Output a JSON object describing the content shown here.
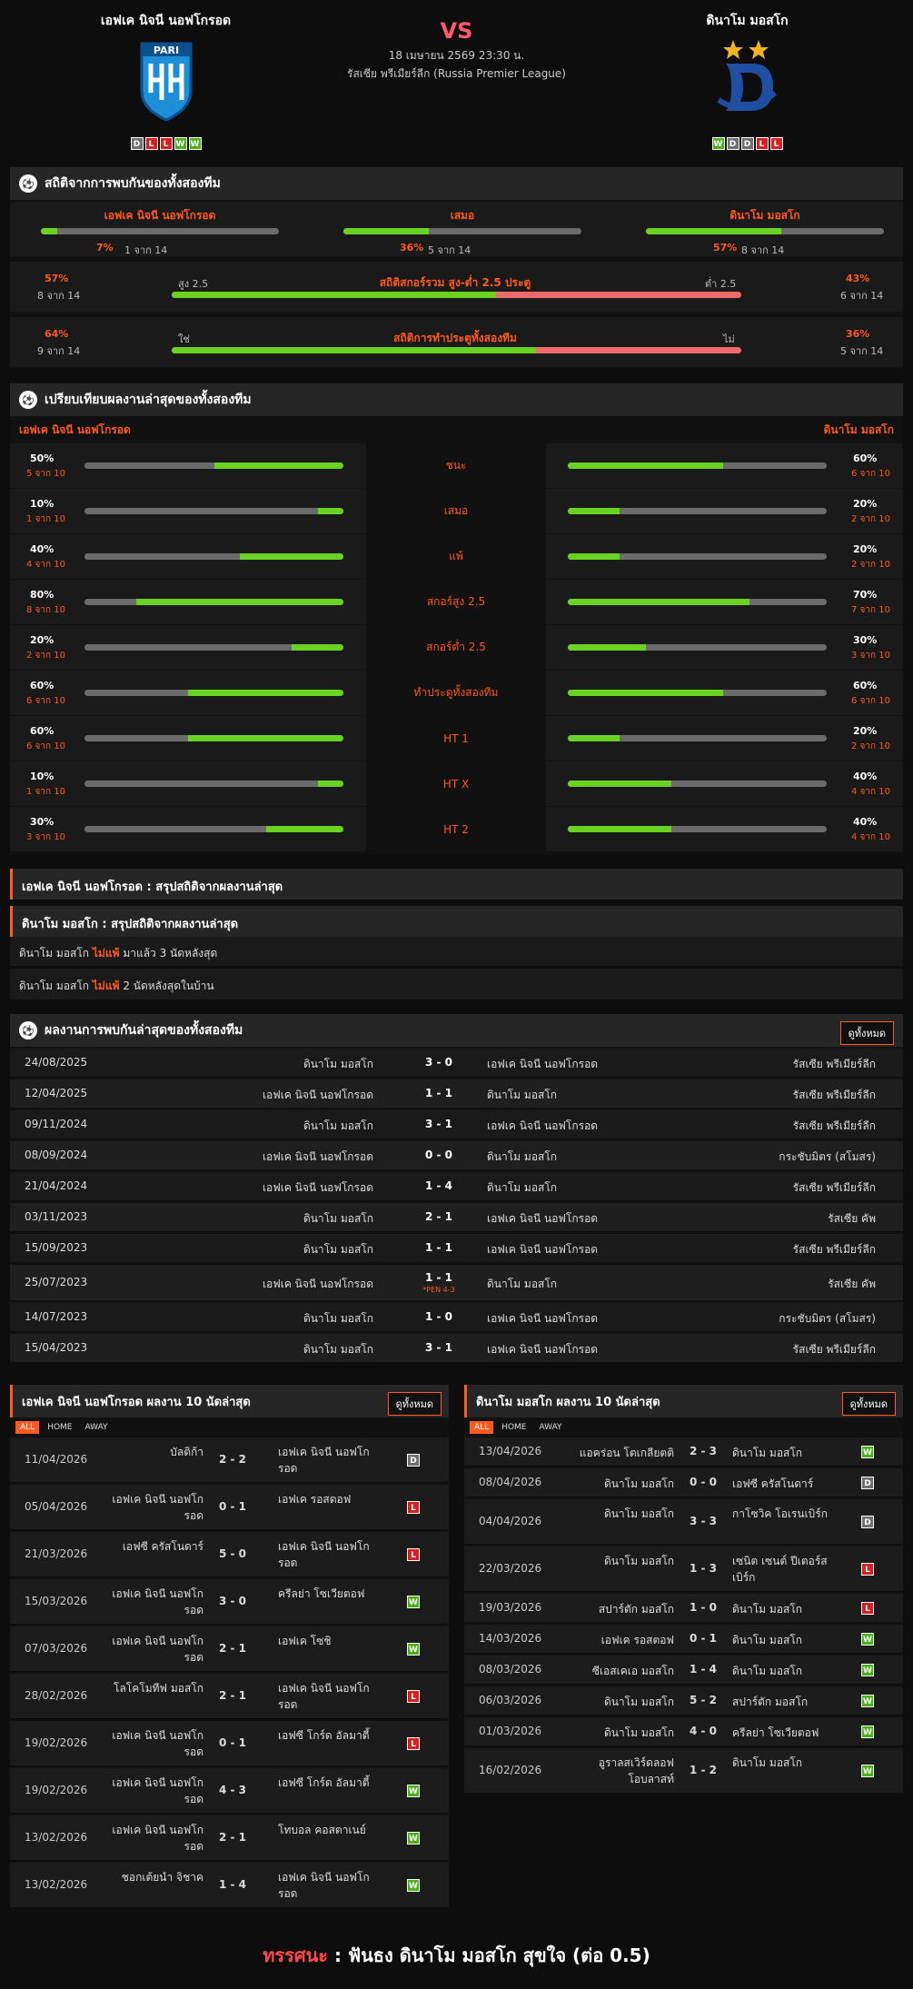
{
  "header": {
    "home_name": "เอฟเค นิจนี นอฟโกรอด",
    "away_name": "ดินาโม มอสโก",
    "vs": "VS",
    "datetime": "18 เมษายน 2569 23:30 น.",
    "league": "รัสเซีย พรีเมียร์ลีก (Russia Premier League)",
    "home_logo_text": "PARI",
    "home_form": [
      "D",
      "L",
      "L",
      "W",
      "W"
    ],
    "away_form": [
      "W",
      "D",
      "D",
      "L",
      "L"
    ],
    "colors": {
      "win": "#49b315",
      "draw": "#707070",
      "loss": "#d81e1e",
      "accent": "#ff5a1f",
      "bar": "#6ad322"
    }
  },
  "h2h_stats": {
    "title": "สถิติจากการพบกันของทั้งสองทีม",
    "cols": [
      {
        "label": "เอฟเค นิจนี นอฟโกรอด",
        "pct": "7%",
        "count": "1 จาก 14",
        "value": 7
      },
      {
        "label": "เสมอ",
        "pct": "36%",
        "count": "5 จาก 14",
        "value": 36
      },
      {
        "label": "ดินาโม มอสโก",
        "pct": "57%",
        "count": "8 จาก 14",
        "value": 57
      }
    ],
    "ou": {
      "left_pct": "57%",
      "left_count": "8 จาก 14",
      "left_label": "สูง 2.5",
      "title": "สถิติสกอร์รวม สูง-ต่ำ 2.5 ประตู",
      "right_label": "ต่ำ 2.5",
      "right_pct": "43%",
      "right_count": "6 จาก 14",
      "value": 57
    },
    "btts": {
      "left_pct": "64%",
      "left_count": "9 จาก 14",
      "left_label": "ใช่",
      "title": "สถิติการทำประตูทั้งสองทีม",
      "right_label": "ไม่",
      "right_pct": "36%",
      "right_count": "5 จาก 14",
      "value": 64
    }
  },
  "compare": {
    "title": "เปรียบเทียบผลงานล่าสุดของทั้งสองทีม",
    "home": "เอฟเค นิจนี นอฟโกรอด",
    "away": "ดินาโม มอสโก",
    "rows": [
      {
        "label": "ชนะ",
        "hp": "50%",
        "hc": "5 จาก 10",
        "hv": 50,
        "ap": "60%",
        "ac": "6 จาก 10",
        "av": 60
      },
      {
        "label": "เสมอ",
        "hp": "10%",
        "hc": "1 จาก 10",
        "hv": 10,
        "ap": "20%",
        "ac": "2 จาก 10",
        "av": 20
      },
      {
        "label": "แพ้",
        "hp": "40%",
        "hc": "4 จาก 10",
        "hv": 40,
        "ap": "20%",
        "ac": "2 จาก 10",
        "av": 20
      },
      {
        "label": "สกอร์สูง 2.5",
        "hp": "80%",
        "hc": "8 จาก 10",
        "hv": 80,
        "ap": "70%",
        "ac": "7 จาก 10",
        "av": 70
      },
      {
        "label": "สกอร์ต่ำ 2.5",
        "hp": "20%",
        "hc": "2 จาก 10",
        "hv": 20,
        "ap": "30%",
        "ac": "3 จาก 10",
        "av": 30
      },
      {
        "label": "ทำประตูทั้งสองทีม",
        "hp": "60%",
        "hc": "6 จาก 10",
        "hv": 60,
        "ap": "60%",
        "ac": "6 จาก 10",
        "av": 60
      },
      {
        "label": "HT 1",
        "hp": "60%",
        "hc": "6 จาก 10",
        "hv": 60,
        "ap": "20%",
        "ac": "2 จาก 10",
        "av": 20
      },
      {
        "label": "HT X",
        "hp": "10%",
        "hc": "1 จาก 10",
        "hv": 10,
        "ap": "40%",
        "ac": "4 จาก 10",
        "av": 40
      },
      {
        "label": "HT 2",
        "hp": "30%",
        "hc": "3 จาก 10",
        "hv": 30,
        "ap": "40%",
        "ac": "4 จาก 10",
        "av": 40
      }
    ]
  },
  "summary": {
    "home_title": "เอฟเค นิจนี นอฟโกรอด : สรุปสถิติจากผลงานล่าสุด",
    "away_title": "ดินาโม มอสโก : สรุปสถิติจากผลงานล่าสุด",
    "lines": [
      {
        "team": "ดินาโม มอสโก",
        "hl": "ไม่แพ้",
        "rest": "มาแล้ว 3 นัดหลังสุด"
      },
      {
        "team": "ดินาโม มอสโก",
        "hl": "ไม่แพ้",
        "rest": "2 นัดหลังสุดในบ้าน"
      }
    ]
  },
  "h2h_results": {
    "title": "ผลงานการพบกันล่าสุดของทั้งสองทีม",
    "see_all": "ดูทั้งหมด",
    "rows": [
      {
        "date": "24/08/2025",
        "home": "ดินาโม มอสโก",
        "score": "3 - 0",
        "away": "เอฟเค นิจนี นอฟโกรอด",
        "comp": "รัสเซีย พรีเมียร์ลีก",
        "note": ""
      },
      {
        "date": "12/04/2025",
        "home": "เอฟเค นิจนี นอฟโกรอด",
        "score": "1 - 1",
        "away": "ดินาโม มอสโก",
        "comp": "รัสเซีย พรีเมียร์ลีก",
        "note": ""
      },
      {
        "date": "09/11/2024",
        "home": "ดินาโม มอสโก",
        "score": "3 - 1",
        "away": "เอฟเค นิจนี นอฟโกรอด",
        "comp": "รัสเซีย พรีเมียร์ลีก",
        "note": ""
      },
      {
        "date": "08/09/2024",
        "home": "เอฟเค นิจนี นอฟโกรอด",
        "score": "0 - 0",
        "away": "ดินาโม มอสโก",
        "comp": "กระชับมิตร (สโมสร)",
        "note": ""
      },
      {
        "date": "21/04/2024",
        "home": "เอฟเค นิจนี นอฟโกรอด",
        "score": "1 - 4",
        "away": "ดินาโม มอสโก",
        "comp": "รัสเซีย พรีเมียร์ลีก",
        "note": ""
      },
      {
        "date": "03/11/2023",
        "home": "ดินาโม มอสโก",
        "score": "2 - 1",
        "away": "เอฟเค นิจนี นอฟโกรอด",
        "comp": "รัสเซีย คัพ",
        "note": ""
      },
      {
        "date": "15/09/2023",
        "home": "ดินาโม มอสโก",
        "score": "1 - 1",
        "away": "เอฟเค นิจนี นอฟโกรอด",
        "comp": "รัสเซีย พรีเมียร์ลีก",
        "note": ""
      },
      {
        "date": "25/07/2023",
        "home": "เอฟเค นิจนี นอฟโกรอด",
        "score": "1 - 1",
        "away": "ดินาโม มอสโก",
        "comp": "รัสเซีย คัพ",
        "note": "*PEN 4-3"
      },
      {
        "date": "14/07/2023",
        "home": "ดินาโม มอสโก",
        "score": "1 - 0",
        "away": "เอฟเค นิจนี นอฟโกรอด",
        "comp": "กระชับมิตร (สโมสร)",
        "note": ""
      },
      {
        "date": "15/04/2023",
        "home": "ดินาโม มอสโก",
        "score": "3 - 1",
        "away": "เอฟเค นิจนี นอฟโกรอด",
        "comp": "รัสเซีย พรีเมียร์ลีก",
        "note": ""
      }
    ]
  },
  "last10": {
    "see_all": "ดูทั้งหมด",
    "tabs": [
      "ALL",
      "HOME",
      "AWAY"
    ],
    "home_title": "เอฟเค นิจนี นอฟโกรอด ผลงาน 10 นัดล่าสุด",
    "away_title": "ดินาโม มอสโก ผลงาน 10 นัดล่าสุด",
    "home_rows": [
      {
        "date": "11/04/2026",
        "home": "บัลติก้า",
        "score": "2 - 2",
        "away": "เอฟเค นิจนี นอฟโกรอด",
        "r": "D"
      },
      {
        "date": "05/04/2026",
        "home": "เอฟเค นิจนี นอฟโกรอด",
        "score": "0 - 1",
        "away": "เอฟเค รอสตอฟ",
        "r": "L"
      },
      {
        "date": "21/03/2026",
        "home": "เอฟซี ครัสโนดาร์",
        "score": "5 - 0",
        "away": "เอฟเค นิจนี นอฟโกรอด",
        "r": "L"
      },
      {
        "date": "15/03/2026",
        "home": "เอฟเค นิจนี นอฟโกรอด",
        "score": "3 - 0",
        "away": "ครีลย่า โซเวียตอฟ",
        "r": "W"
      },
      {
        "date": "07/03/2026",
        "home": "เอฟเค นิจนี นอฟโกรอด",
        "score": "2 - 1",
        "away": "เอฟเค โซชิ",
        "r": "W"
      },
      {
        "date": "28/02/2026",
        "home": "โลโคโมทีฟ มอสโก",
        "score": "2 - 1",
        "away": "เอฟเค นิจนี นอฟโกรอด",
        "r": "L"
      },
      {
        "date": "19/02/2026",
        "home": "เอฟเค นิจนี นอฟโกรอด",
        "score": "0 - 1",
        "away": "เอฟซี โกร์ด อัลมาตี้",
        "r": "L"
      },
      {
        "date": "19/02/2026",
        "home": "เอฟเค นิจนี นอฟโกรอด",
        "score": "4 - 3",
        "away": "เอฟซี โกร์ด อัลมาตี้",
        "r": "W"
      },
      {
        "date": "13/02/2026",
        "home": "เอฟเค นิจนี นอฟโกรอด",
        "score": "2 - 1",
        "away": "โทบอล คอสตาเนย์",
        "r": "W"
      },
      {
        "date": "13/02/2026",
        "home": "ชอกเต้ยนำ จิชาค",
        "score": "1 - 4",
        "away": "เอฟเค นิจนี นอฟโกรอด",
        "r": "W"
      }
    ],
    "away_rows": [
      {
        "date": "13/04/2026",
        "home": "แอคร่อน โตเกลียตติ",
        "score": "2 - 3",
        "away": "ดินาโม มอสโก",
        "r": "W"
      },
      {
        "date": "08/04/2026",
        "home": "ดินาโม มอสโก",
        "score": "0 - 0",
        "away": "เอฟซี ครัสโนดาร์",
        "r": "D"
      },
      {
        "date": "04/04/2026",
        "home": "ดินาโม มอสโก",
        "score": "3 - 3",
        "away": "กาโซวิค โอเรนเบิร์ก",
        "r": "D"
      },
      {
        "date": "22/03/2026",
        "home": "ดินาโม มอสโก",
        "score": "1 - 3",
        "away": "เซนิต เซนต์ ปีเตอร์สเบิร์ก",
        "r": "L"
      },
      {
        "date": "19/03/2026",
        "home": "สปาร์ตัก มอสโก",
        "score": "1 - 0",
        "away": "ดินาโม มอสโก",
        "r": "L"
      },
      {
        "date": "14/03/2026",
        "home": "เอฟเค รอสตอฟ",
        "score": "0 - 1",
        "away": "ดินาโม มอสโก",
        "r": "W"
      },
      {
        "date": "08/03/2026",
        "home": "ซีเอสเคเอ มอสโก",
        "score": "1 - 4",
        "away": "ดินาโม มอสโก",
        "r": "W"
      },
      {
        "date": "06/03/2026",
        "home": "ดินาโม มอสโก",
        "score": "5 - 2",
        "away": "สปาร์ตัก มอสโก",
        "r": "W"
      },
      {
        "date": "01/03/2026",
        "home": "ดินาโม มอสโก",
        "score": "4 - 0",
        "away": "ครีลย่า โซเวียตอฟ",
        "r": "W"
      },
      {
        "date": "16/02/2026",
        "home": "อูราลสเวิร์ดลอฟ โอบลาสท์",
        "score": "1 - 2",
        "away": "ดินาโม มอสโก",
        "r": "W"
      }
    ]
  },
  "prediction": {
    "label": "ทรรศนะ",
    "sep": ":",
    "text": "ฟันธง ดินาโม มอสโก สุขใจ (ต่อ 0.5)"
  }
}
